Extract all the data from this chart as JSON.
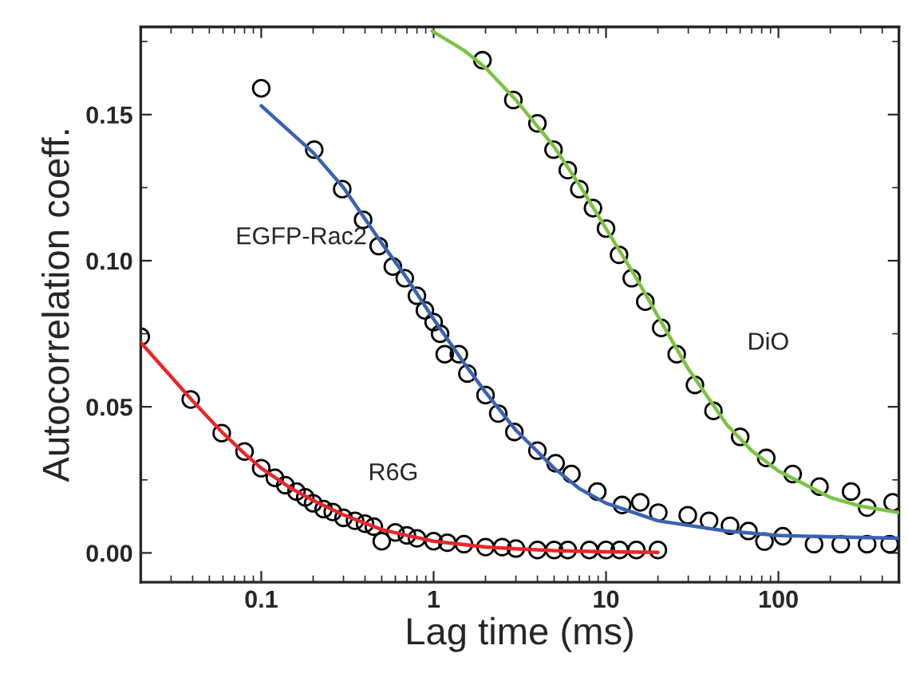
{
  "chart_data": {
    "type": "scatter",
    "xlabel": "Lag time (ms)",
    "ylabel": "Autocorrelation coeff.",
    "log": "x",
    "marker": "circle",
    "grid": false,
    "xlim": [
      0.02,
      500
    ],
    "xticks": [
      0.1,
      1,
      10,
      100
    ],
    "ylim": [
      -0.01,
      0.18
    ],
    "yticks": [
      {
        "value": 0,
        "label": "0.00"
      },
      {
        "value": 0.05,
        "label": "0.05"
      },
      {
        "value": 0.1,
        "label": "0.10"
      },
      {
        "value": 0.15,
        "label": "0.15"
      }
    ],
    "annotations": [
      "R6G",
      "EGFP-Rac2",
      "DiO"
    ],
    "series": [
      {
        "color": "#000000",
        "x": [
          0.02,
          0.039,
          0.059,
          0.08,
          0.1,
          0.12,
          0.138,
          0.16,
          0.18,
          0.2,
          0.23,
          0.26,
          0.3,
          0.35,
          0.4,
          0.45,
          0.5,
          0.6,
          0.7,
          0.8,
          1,
          1.2,
          1.5,
          2,
          2.5,
          3,
          4,
          5,
          6,
          8,
          10,
          12,
          15,
          20
        ],
        "values": [
          0.074,
          0.0525,
          0.041,
          0.0347,
          0.029,
          0.0257,
          0.0232,
          0.021,
          0.019,
          0.017,
          0.015,
          0.014,
          0.012,
          0.011,
          0.01,
          0.009,
          0.004,
          0.007,
          0.006,
          0.005,
          0.004,
          0.0035,
          0.003,
          0.002,
          0.002,
          0.0015,
          0.001,
          0.001,
          0.001,
          0.001,
          0.001,
          0.001,
          0.001,
          0.001
        ]
      },
      {
        "type": "line",
        "marker": "none",
        "color": "#e8262a",
        "x": [
          0.02,
          0.04,
          0.06,
          0.08,
          0.1,
          0.15,
          0.2,
          0.3,
          0.5,
          0.7,
          1,
          2,
          3,
          5,
          10,
          20
        ],
        "values": [
          0.072,
          0.052,
          0.041,
          0.034,
          0.029,
          0.022,
          0.018,
          0.013,
          0.008,
          0.006,
          0.004,
          0.002,
          0.0014,
          0.0008,
          0.0004,
          0.0002
        ]
      },
      {
        "color": "#000000",
        "x": [
          0.1,
          0.203,
          0.295,
          0.39,
          0.48,
          0.58,
          0.68,
          0.8,
          0.89,
          1.0,
          1.09,
          1.16,
          1.4,
          1.57,
          2.0,
          2.37,
          2.94,
          4.0,
          5.1,
          6.3,
          8.9,
          12.4,
          15.8,
          20.1,
          29.8,
          39.6,
          52.4,
          67,
          83,
          106,
          161,
          230,
          327,
          442
        ],
        "values": [
          0.159,
          0.138,
          0.1245,
          0.114,
          0.105,
          0.098,
          0.094,
          0.088,
          0.083,
          0.079,
          0.075,
          0.068,
          0.068,
          0.0614,
          0.054,
          0.0477,
          0.0414,
          0.035,
          0.0307,
          0.027,
          0.021,
          0.0164,
          0.0173,
          0.0138,
          0.0129,
          0.011,
          0.0093,
          0.0075,
          0.0039,
          0.0057,
          0.003,
          0.003,
          0.003,
          0.003
        ]
      },
      {
        "type": "line",
        "marker": "none",
        "color": "#3a62b0",
        "x": [
          0.1,
          0.2,
          0.3,
          0.5,
          0.7,
          1,
          1.5,
          2,
          3,
          5,
          7,
          10,
          20,
          50,
          100,
          200,
          500
        ],
        "values": [
          0.153,
          0.137,
          0.125,
          0.106,
          0.094,
          0.08,
          0.065,
          0.055,
          0.042,
          0.029,
          0.022,
          0.017,
          0.011,
          0.0075,
          0.006,
          0.0055,
          0.005
        ]
      },
      {
        "color": "#000000",
        "x": [
          1.92,
          2.9,
          4.0,
          4.96,
          6.0,
          7.0,
          8.4,
          10.0,
          11.9,
          14.1,
          16.9,
          20.9,
          25.7,
          32.8,
          42,
          60,
          85,
          121,
          173,
          264,
          327,
          460
        ],
        "values": [
          0.1686,
          0.155,
          0.147,
          0.138,
          0.131,
          0.1245,
          0.118,
          0.111,
          0.102,
          0.094,
          0.086,
          0.077,
          0.068,
          0.0575,
          0.0486,
          0.0397,
          0.0325,
          0.027,
          0.0227,
          0.021,
          0.0155,
          0.0173
        ]
      },
      {
        "type": "line",
        "marker": "none",
        "color": "#7dc243",
        "x": [
          0.98,
          1.5,
          2,
          3,
          4,
          5,
          7,
          10,
          15,
          20,
          30,
          50,
          70,
          100,
          200,
          300,
          500
        ],
        "values": [
          0.1786,
          0.172,
          0.166,
          0.155,
          0.146,
          0.139,
          0.126,
          0.111,
          0.094,
          0.081,
          0.063,
          0.044,
          0.035,
          0.028,
          0.019,
          0.016,
          0.0138
        ]
      }
    ]
  }
}
